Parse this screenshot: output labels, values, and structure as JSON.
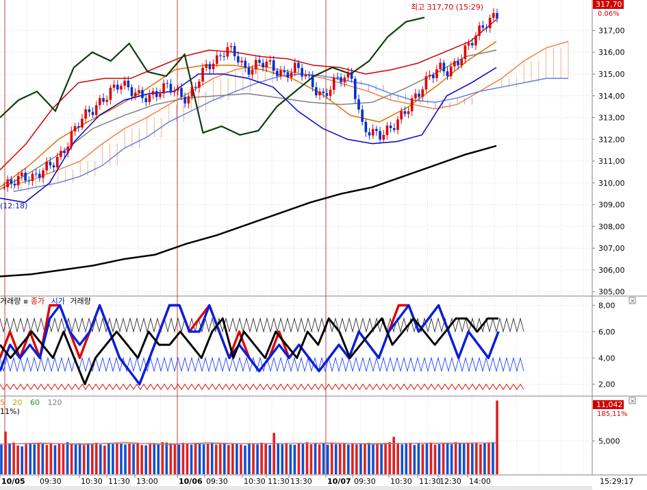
{
  "chart_data": [
    {
      "type": "candlestick",
      "title": "",
      "xlabel": "",
      "ylabel": "",
      "ylim": [
        304.8,
        318.4
      ],
      "y_ticks": [
        305.0,
        306.0,
        307.0,
        308.0,
        309.0,
        310.0,
        311.0,
        312.0,
        313.0,
        314.0,
        315.0,
        316.0,
        317.0
      ],
      "y_tick_labels": [
        "305,00",
        "306,00",
        "307,00",
        "308,00",
        "309,00",
        "310,00",
        "311,00",
        "312,00",
        "313,00",
        "314,00",
        "315,00",
        "316,00",
        "317,00"
      ],
      "current_price_label": "317,70",
      "current_change_label": "0.06%",
      "high_annotation": "최고 317,70 (15:29)",
      "low_annotation": "(12:18)",
      "grid": true,
      "price_trace": [
        309.8,
        310.1,
        310.3,
        310.2,
        310.6,
        310.9,
        311.3,
        312.2,
        313.0,
        313.3,
        313.7,
        314.2,
        314.6,
        314.3,
        314.0,
        313.9,
        314.2,
        314.5,
        314.1,
        313.8,
        314.7,
        315.4,
        315.6,
        316.2,
        315.9,
        315.1,
        315.4,
        315.6,
        315.2,
        314.9,
        315.3,
        315.1,
        314.4,
        313.9,
        314.6,
        314.9,
        314.8,
        312.6,
        312.3,
        312.2,
        312.5,
        313.0,
        313.6,
        314.2,
        314.9,
        315.3,
        315.1,
        315.6,
        316.3,
        316.9,
        317.4,
        317.7
      ],
      "overlays": [
        {
          "name": "MA long",
          "color": "#000000",
          "values": [
            305.7,
            305.8,
            306.0,
            306.2,
            306.5,
            306.7,
            307.2,
            307.6,
            308.1,
            308.6,
            309.1,
            309.5,
            309.8,
            310.3,
            310.8,
            311.3,
            311.7
          ]
        },
        {
          "name": "MA red",
          "color": "#d00000",
          "values": [
            310.6,
            311.8,
            313.4,
            314.6,
            314.8,
            314.8,
            315.3,
            315.8,
            316.1,
            316.0,
            315.8,
            315.7,
            315.4,
            315.3,
            315.0,
            315.2,
            315.5,
            316.0,
            316.5,
            317.5
          ]
        },
        {
          "name": "MA orange",
          "color": "#e07000",
          "values": [
            309.8,
            310.8,
            312.0,
            312.8,
            313.5,
            314.3,
            315.2,
            315.4,
            315.4,
            315.2,
            314.8,
            314.1,
            313.1,
            312.8,
            313.5,
            314.5,
            315.6,
            316.5
          ]
        },
        {
          "name": "MA gray",
          "color": "#808080",
          "values": [
            309.7,
            310.5,
            311.4,
            312.5,
            313.1,
            313.6,
            313.9,
            314.0,
            314.1,
            313.9,
            313.7,
            313.6,
            313.7,
            314.3,
            315.0,
            315.8,
            316.1
          ]
        },
        {
          "name": "MA blue",
          "color": "#0000cc",
          "values": [
            309.3,
            309.1,
            310.0,
            311.9,
            313.1,
            313.8,
            314.1,
            314.2,
            315.0,
            315.0,
            314.8,
            314.4,
            313.3,
            312.5,
            312.0,
            311.8,
            311.9,
            312.2,
            314.0,
            314.6,
            315.3
          ]
        },
        {
          "name": "Lagging span",
          "color": "#0d3d0d",
          "values": [
            313.0,
            313.8,
            314.2,
            313.3,
            315.3,
            316.0,
            315.6,
            316.4,
            315.1,
            314.9,
            315.9,
            312.3,
            312.6,
            312.2,
            312.4,
            313.5,
            314.2,
            314.9,
            315.3,
            315.0,
            315.6,
            316.7,
            317.4,
            317.6
          ]
        }
      ]
    },
    {
      "type": "line",
      "legend": [
        "거래량",
        "종가",
        "시가",
        "거래량"
      ],
      "ylim": [
        1.2,
        8.6
      ],
      "y_ticks": [
        2.0,
        4.0,
        6.0,
        8.0
      ],
      "y_tick_labels": [
        "2,00",
        "4,00",
        "6,00",
        "8,00"
      ],
      "series": [
        {
          "name": "종가",
          "color": "#e00000",
          "values": [
            4,
            6,
            4,
            6,
            4,
            8,
            8,
            6,
            4,
            6,
            8,
            6,
            4,
            3,
            2,
            4,
            6,
            8,
            8,
            6,
            7,
            8,
            6,
            4,
            6,
            4,
            3,
            4,
            6,
            4,
            5,
            4,
            3,
            4,
            5,
            4,
            6,
            5,
            4,
            6,
            8,
            8,
            6,
            7,
            8,
            6,
            4,
            6,
            5,
            4,
            6
          ]
        },
        {
          "name": "시가",
          "color": "#0020e0",
          "values": [
            3,
            5,
            4,
            5,
            4,
            7,
            8,
            6,
            5,
            6,
            8,
            6,
            4,
            3,
            2,
            4,
            6,
            8,
            8,
            6,
            6,
            8,
            6,
            4,
            5,
            4,
            3,
            4,
            5,
            4,
            5,
            4,
            3,
            4,
            5,
            4,
            6,
            5,
            4,
            6,
            7,
            8,
            6,
            7,
            8,
            6,
            4,
            6,
            5,
            4,
            6
          ]
        },
        {
          "name": "거래량",
          "color": "#000000",
          "values": [
            5,
            4,
            5,
            6,
            5,
            4,
            6,
            4,
            2,
            4,
            5,
            6,
            5,
            4,
            6,
            5,
            5,
            6,
            5,
            4,
            6,
            7,
            4,
            6,
            5,
            4,
            6,
            5,
            4,
            6,
            5,
            7,
            6,
            4,
            5,
            6,
            7,
            5,
            6,
            7,
            6,
            5,
            6,
            7,
            7,
            6,
            7,
            7
          ]
        },
        {
          "name": "upper-band",
          "color": "#303030",
          "cycle": [
            7,
            6,
            7
          ],
          "range": [
            6,
            7
          ]
        },
        {
          "name": "mid-band",
          "color": "#2040ff",
          "cycle": [
            3,
            4,
            3
          ],
          "range": [
            3,
            4
          ]
        },
        {
          "name": "lower-band",
          "color": "#e00000",
          "cycle": [
            1.6,
            2.0,
            1.6
          ],
          "range": [
            1.6,
            2.0
          ]
        }
      ]
    },
    {
      "type": "bar",
      "legend": [
        "5",
        "20",
        "60",
        "120"
      ],
      "legend_prefix": "11%)",
      "ylim": [
        0,
        11500
      ],
      "y_ticks": [
        5000
      ],
      "y_tick_labels": [
        "5,000"
      ],
      "current_volume_label": "11,042",
      "current_volume_pct": "185,11%",
      "volumes": [
        4420,
        4500,
        4650,
        4750,
        4300,
        4180,
        4500,
        4600,
        4480,
        4700,
        4550,
        4400,
        4650,
        4350,
        4600,
        4500,
        4800,
        4470,
        4430,
        4650,
        4380,
        4600,
        4570,
        4720,
        4460,
        4300,
        4550,
        4520,
        4640,
        4600,
        4450,
        4600,
        4500,
        4680,
        4400,
        4320,
        4500,
        4650,
        4450,
        4570,
        4750,
        4600,
        4500,
        4420,
        4700,
        4600,
        4450,
        4650,
        4520,
        4480,
        4600,
        4750,
        4440,
        4500,
        4680,
        4390,
        4550,
        4600,
        4450,
        4300,
        4650,
        4500,
        4470,
        4720,
        4600,
        4380,
        4550,
        4600,
        4500,
        4680,
        4470,
        4410,
        4600,
        4550,
        4800,
        4500,
        4650,
        4480,
        4600,
        4420,
        4700,
        4500,
        4520,
        4600,
        4450,
        4650,
        4480,
        4600,
        4550,
        4700,
        4450,
        4620,
        4500,
        4700,
        4800,
        4560,
        4620,
        4480,
        4600,
        4700,
        4400,
        4650,
        4500,
        4600,
        4750,
        4450,
        4520,
        4680,
        4600,
        4500,
        4800,
        4650,
        4550,
        4700,
        4600,
        4750,
        4500,
        4620,
        4700,
        4800,
        11042
      ],
      "spikes": [
        [
          1,
          6400
        ],
        [
          39,
          4800
        ],
        [
          66,
          6200
        ],
        [
          95,
          5600
        ]
      ]
    }
  ],
  "x_axis": {
    "labels": [
      "10/05",
      "09:30",
      "10:30",
      "11:30",
      "13:00",
      "10/06",
      "09:30",
      "10:30",
      "11:30",
      "13:30",
      "10/07",
      "09:30",
      "10:30",
      "11:30",
      "12:30",
      "14:00"
    ],
    "labels_bold": [
      true,
      false,
      false,
      false,
      false,
      true,
      false,
      false,
      false,
      false,
      true,
      false,
      false,
      false,
      false,
      false
    ],
    "time_readout": "15:29:17"
  }
}
